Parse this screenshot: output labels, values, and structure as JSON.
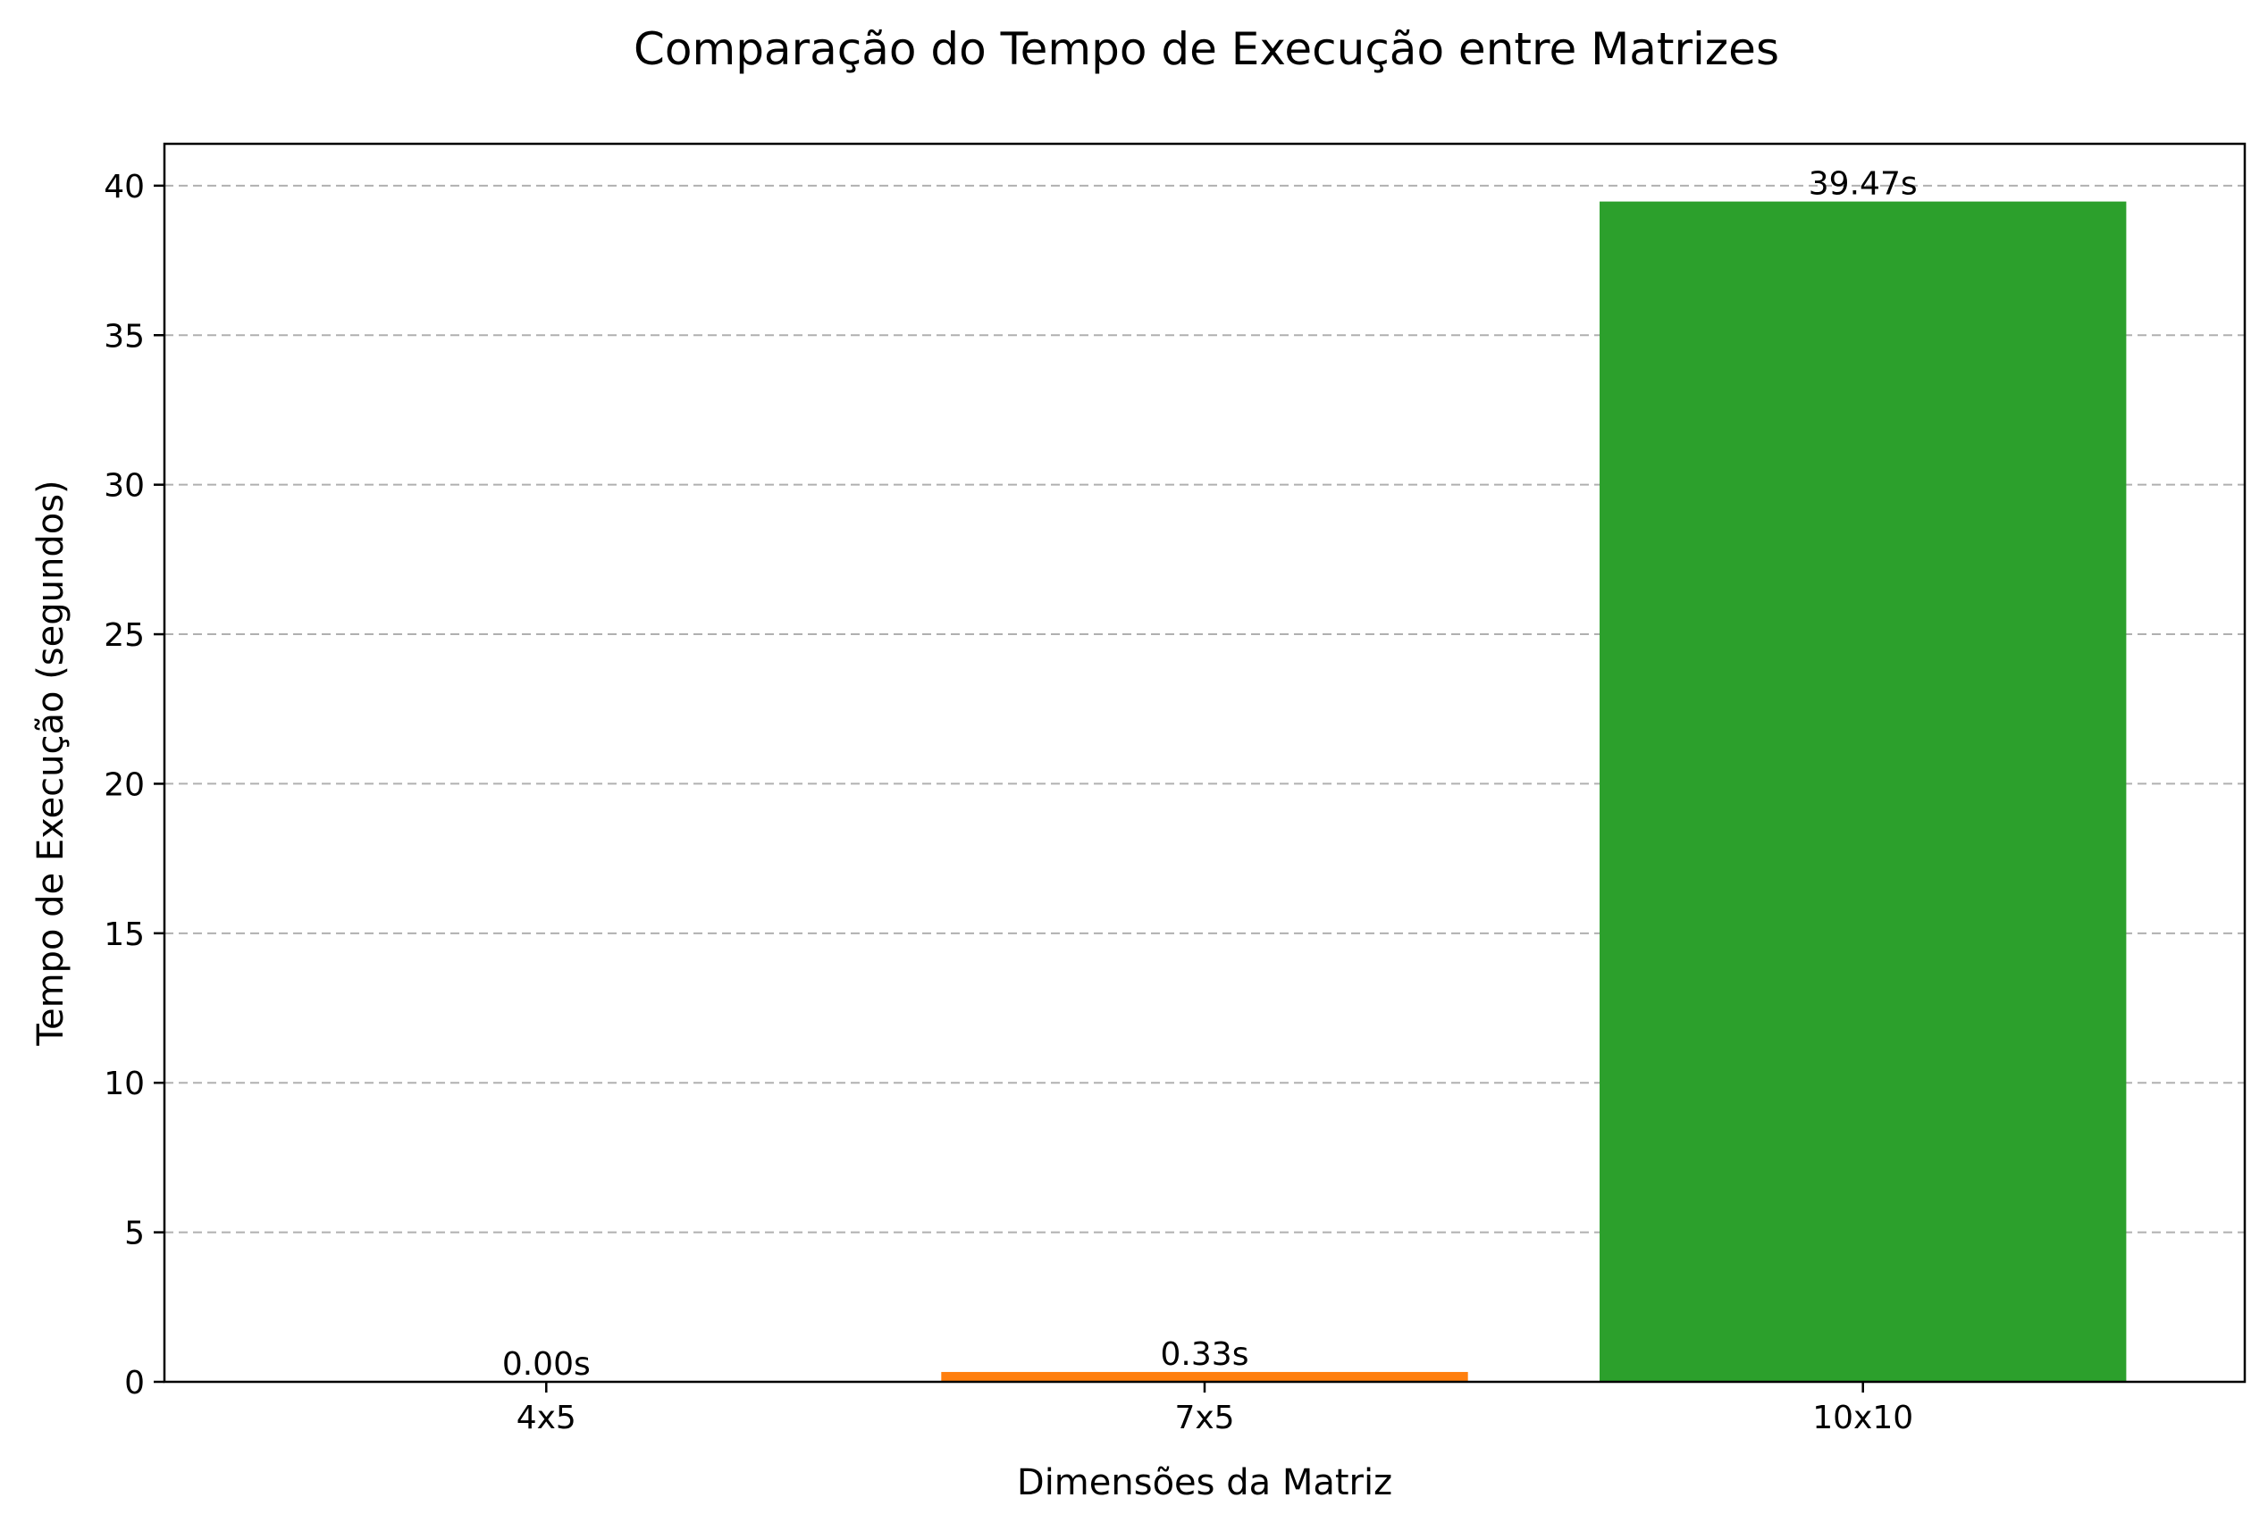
{
  "chart_data": {
    "type": "bar",
    "title": "Comparação do Tempo de Execução entre Matrizes",
    "xlabel": "Dimensões da Matriz",
    "ylabel": "Tempo de Execução (segundos)",
    "categories": [
      "4x5",
      "7x5",
      "10x10"
    ],
    "values": [
      0.0,
      0.33,
      39.47
    ],
    "value_labels": [
      "0.00s",
      "0.33s",
      "39.47s"
    ],
    "colors": [
      "#1f77b4",
      "#ff7f0e",
      "#2ca02c"
    ],
    "ylim": [
      0,
      41.4
    ],
    "yticks": [
      0,
      5,
      10,
      15,
      20,
      25,
      30,
      35,
      40
    ],
    "grid": "y-dashed",
    "legend": "none"
  }
}
